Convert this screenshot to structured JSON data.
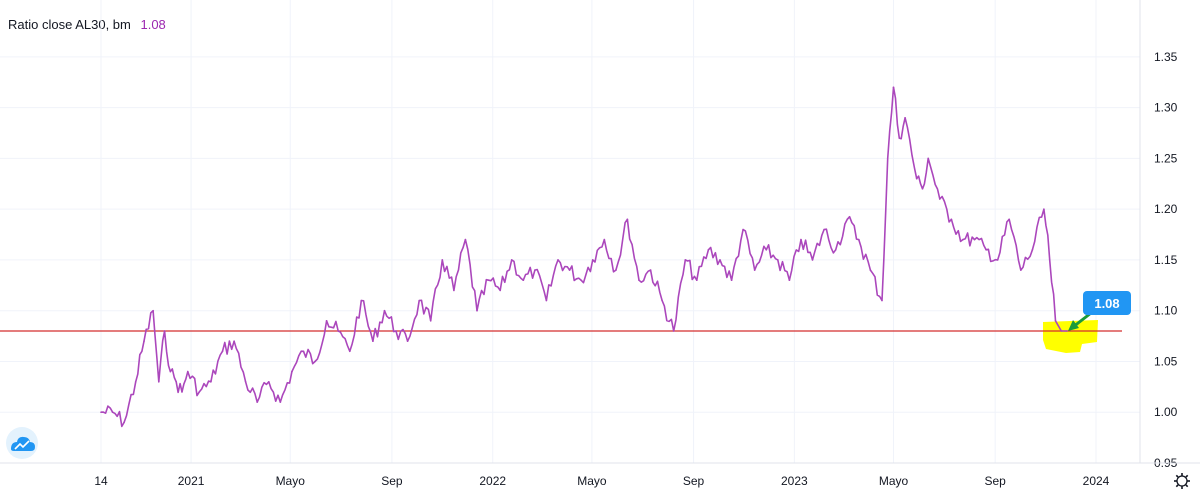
{
  "legend": {
    "title": "Ratio close AL30, bm",
    "value": "1.08",
    "value_color": "#9c27b0"
  },
  "colors": {
    "series": "#ab47bc",
    "reference_line": "#d32f2f",
    "highlight": "#ffff00",
    "callout_bg": "#2196f3",
    "arrow": "#1a9a3a",
    "grid": "#f0f3fa",
    "axis_text": "#131722"
  },
  "icons": {
    "logo": "tradingview-cloud-icon",
    "settings": "gear-icon"
  },
  "chart_data": {
    "type": "line",
    "title": "Ratio close AL30, bm",
    "xlabel": "",
    "ylabel": "",
    "ylim": [
      0.95,
      1.38
    ],
    "y_ticks": [
      "1.35",
      "1.30",
      "1.25",
      "1.20",
      "1.15",
      "1.10",
      "1.05",
      "1.00",
      "0.95"
    ],
    "x_ticks": [
      {
        "label": "14",
        "date": "2020-09-14"
      },
      {
        "label": "2021",
        "date": "2021-01-01"
      },
      {
        "label": "Mayo",
        "date": "2021-05-01"
      },
      {
        "label": "Sep",
        "date": "2021-09-01"
      },
      {
        "label": "2022",
        "date": "2022-01-01"
      },
      {
        "label": "Mayo",
        "date": "2022-05-01"
      },
      {
        "label": "Sep",
        "date": "2022-09-01"
      },
      {
        "label": "2023",
        "date": "2023-01-01"
      },
      {
        "label": "Mayo",
        "date": "2023-05-01"
      },
      {
        "label": "Sep",
        "date": "2023-09-01"
      },
      {
        "label": "2024",
        "date": "2024-01-01"
      }
    ],
    "grid": true,
    "reference_line": 1.08,
    "last_value_label": "1.08",
    "series": [
      {
        "x": [
          "2020-09-14",
          "2020-09-28",
          "2020-10-12",
          "2020-10-26",
          "2020-11-05",
          "2020-11-16",
          "2020-11-23",
          "2020-11-30",
          "2020-12-07",
          "2020-12-14",
          "2020-12-21",
          "2020-12-28",
          "2021-01-11",
          "2021-01-25",
          "2021-02-08",
          "2021-02-22",
          "2021-03-08",
          "2021-03-22",
          "2021-04-05",
          "2021-04-19",
          "2021-05-03",
          "2021-05-17",
          "2021-05-31",
          "2021-06-14",
          "2021-06-28",
          "2021-07-12",
          "2021-07-26",
          "2021-08-09",
          "2021-08-23",
          "2021-09-06",
          "2021-09-20",
          "2021-10-04",
          "2021-10-18",
          "2021-11-01",
          "2021-11-15",
          "2021-11-29",
          "2021-12-13",
          "2021-12-27",
          "2022-01-10",
          "2022-01-24",
          "2022-02-07",
          "2022-02-21",
          "2022-03-07",
          "2022-03-21",
          "2022-04-04",
          "2022-04-18",
          "2022-05-02",
          "2022-05-16",
          "2022-05-30",
          "2022-06-13",
          "2022-06-27",
          "2022-07-11",
          "2022-07-25",
          "2022-08-08",
          "2022-08-22",
          "2022-09-05",
          "2022-09-19",
          "2022-10-03",
          "2022-10-17",
          "2022-10-31",
          "2022-11-14",
          "2022-11-28",
          "2022-12-12",
          "2022-12-26",
          "2023-01-09",
          "2023-01-23",
          "2023-02-06",
          "2023-02-20",
          "2023-03-06",
          "2023-03-20",
          "2023-04-03",
          "2023-04-17",
          "2023-04-24",
          "2023-05-01",
          "2023-05-08",
          "2023-05-15",
          "2023-05-29",
          "2023-06-05",
          "2023-06-12",
          "2023-06-26",
          "2023-07-10",
          "2023-07-24",
          "2023-08-07",
          "2023-08-21",
          "2023-09-04",
          "2023-09-18",
          "2023-10-02",
          "2023-10-16",
          "2023-10-30",
          "2023-11-06",
          "2023-11-13",
          "2023-11-20",
          "2023-11-27"
        ],
        "values": [
          1.0,
          1.0,
          0.99,
          1.03,
          1.07,
          1.1,
          1.03,
          1.08,
          1.04,
          1.03,
          1.02,
          1.04,
          1.02,
          1.03,
          1.06,
          1.07,
          1.03,
          1.01,
          1.03,
          1.01,
          1.04,
          1.06,
          1.05,
          1.09,
          1.08,
          1.06,
          1.11,
          1.07,
          1.1,
          1.08,
          1.07,
          1.11,
          1.09,
          1.15,
          1.12,
          1.17,
          1.1,
          1.13,
          1.12,
          1.15,
          1.13,
          1.14,
          1.11,
          1.15,
          1.14,
          1.13,
          1.15,
          1.17,
          1.14,
          1.19,
          1.13,
          1.14,
          1.11,
          1.08,
          1.15,
          1.13,
          1.16,
          1.15,
          1.13,
          1.18,
          1.14,
          1.16,
          1.15,
          1.13,
          1.17,
          1.15,
          1.18,
          1.16,
          1.19,
          1.17,
          1.14,
          1.11,
          1.25,
          1.32,
          1.27,
          1.29,
          1.23,
          1.22,
          1.25,
          1.21,
          1.19,
          1.17,
          1.17,
          1.16,
          1.15,
          1.19,
          1.14,
          1.16,
          1.2,
          1.15,
          1.09,
          1.08,
          1.08
        ]
      }
    ]
  }
}
